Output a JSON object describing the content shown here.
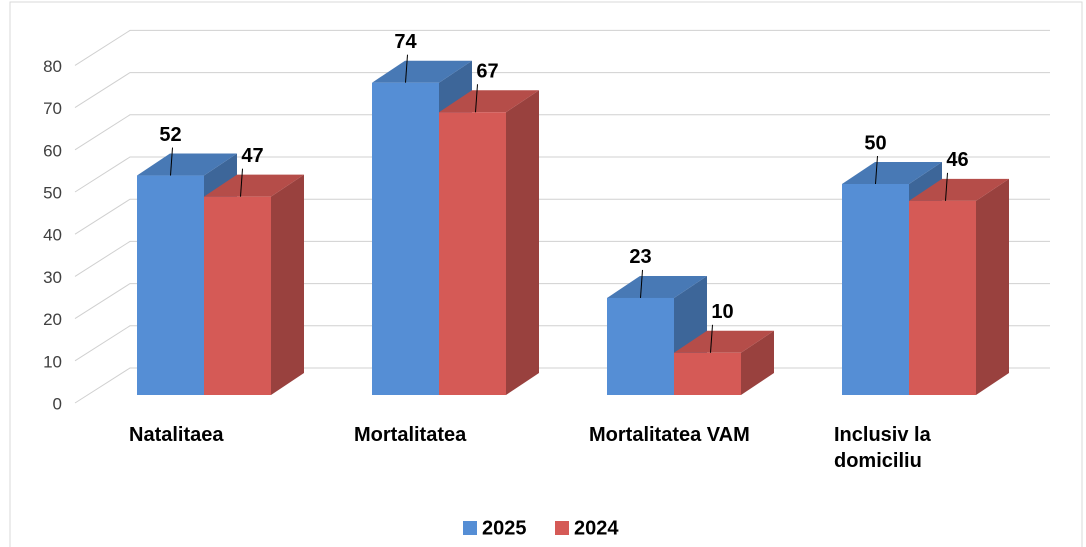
{
  "chart_data": {
    "type": "bar3d",
    "categories": [
      "Natalitaea",
      "Mortalitatea",
      "Mortalitatea VAM",
      "Inclusiv la domiciliu"
    ],
    "series": [
      {
        "name": "2025",
        "color": "#558ed5",
        "values": [
          52,
          74,
          23,
          50
        ]
      },
      {
        "name": "2024",
        "color": "#d55a56",
        "values": [
          47,
          67,
          10,
          46
        ]
      }
    ],
    "ylim": [
      0,
      80
    ],
    "yticks": [
      0,
      10,
      20,
      30,
      40,
      50,
      60,
      70,
      80
    ],
    "grid": true,
    "legend": "bottom"
  }
}
